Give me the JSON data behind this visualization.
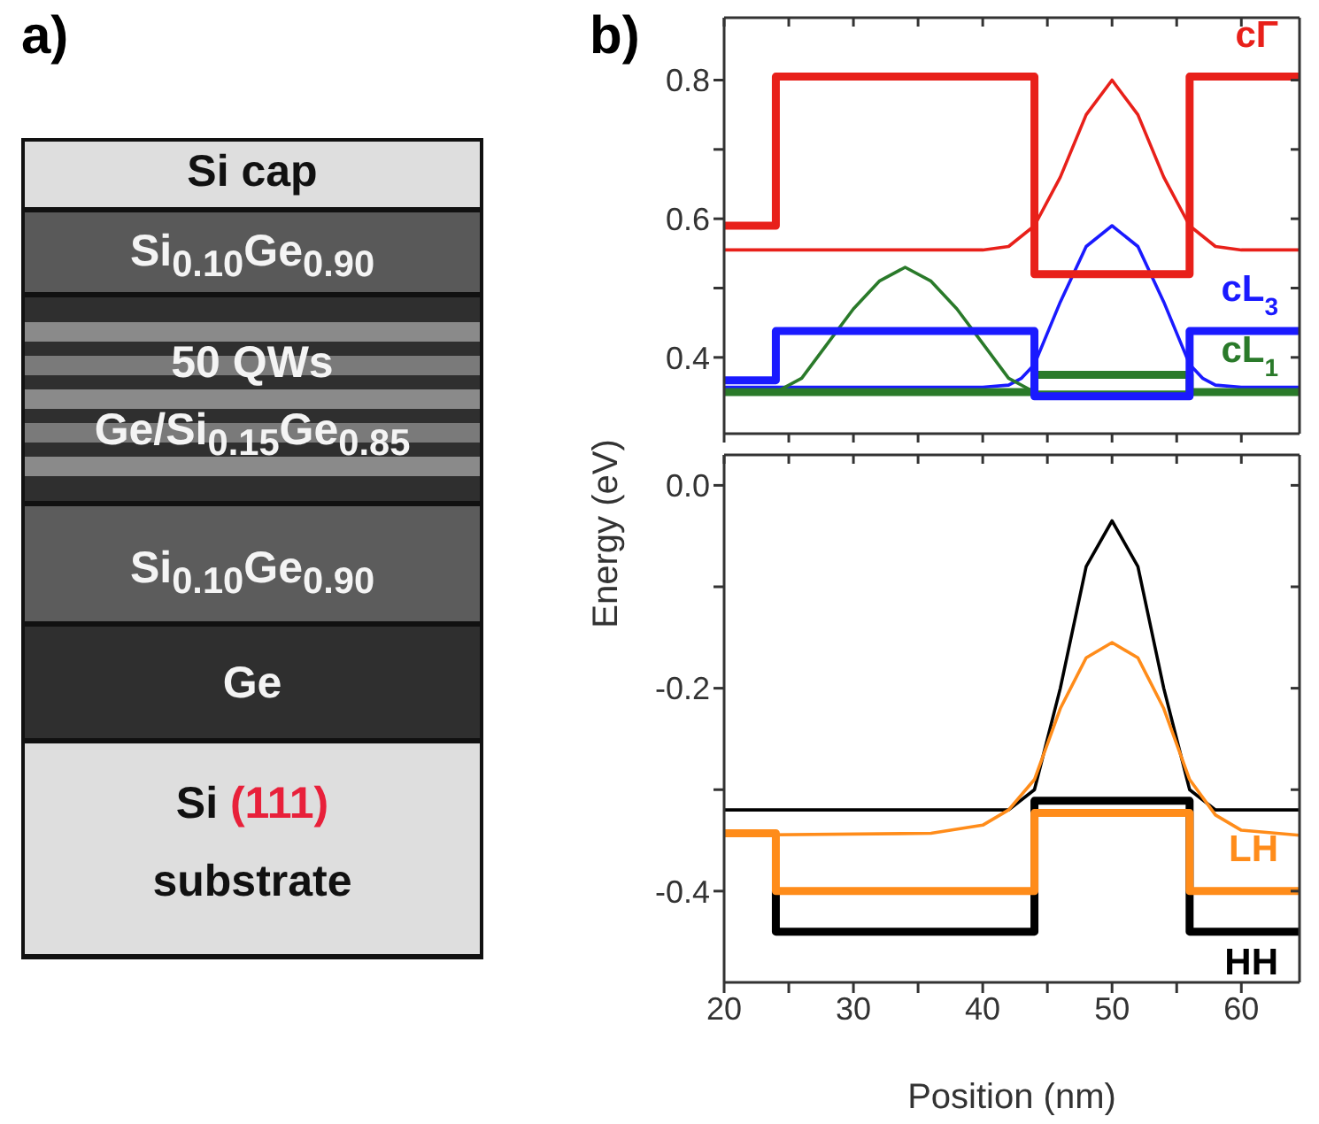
{
  "chart_data": [
    {
      "type": "other",
      "title": "a)",
      "annotations": [
        "Si cap",
        "Si$_{0.10}$Ge$_{0.90}$",
        "50 QWs",
        "Ge/Si$_{0.15}$Ge$_{0.85}$",
        "Si$_{0.10}$Ge$_{0.90}$",
        "Ge",
        "Si (111)",
        "substrate"
      ]
    },
    {
      "type": "line",
      "title": "b)",
      "xlim": [
        20,
        64.5
      ],
      "xticks": [
        20,
        {
          "value": 25,
          "label": null
        },
        30,
        {
          "value": 35,
          "label": null
        },
        40,
        {
          "value": 45,
          "label": null
        },
        50,
        {
          "value": 55,
          "label": null
        },
        60
      ],
      "ylim": [
        0.29,
        0.89
      ],
      "yticks": [
        0.4,
        {
          "value": 0.5,
          "label": null
        },
        0.6,
        {
          "value": 0.7,
          "label": null
        },
        0.8
      ],
      "tick_labels": "y",
      "legend": false,
      "grid": false,
      "marker": "none",
      "series": [
        {
          "color": "#e8201a",
          "x": [
            20,
            40,
            42,
            44,
            46,
            48,
            50,
            52,
            54,
            56,
            58,
            60,
            64.5
          ],
          "values": [
            0.555,
            0.555,
            0.56,
            0.59,
            0.66,
            0.75,
            0.8,
            0.75,
            0.66,
            0.59,
            0.56,
            0.555,
            0.555
          ]
        },
        {
          "color": "#1a1aff",
          "x": [
            20,
            40,
            42,
            43,
            44,
            46,
            48,
            50,
            52,
            54,
            56,
            57,
            58,
            60,
            64.5
          ],
          "values": [
            0.357,
            0.357,
            0.36,
            0.37,
            0.39,
            0.48,
            0.56,
            0.59,
            0.56,
            0.48,
            0.39,
            0.37,
            0.36,
            0.357,
            0.357
          ]
        },
        {
          "color": "#2a7a2a",
          "x": [
            20,
            24,
            26,
            28,
            30,
            32,
            34,
            36,
            38,
            40,
            42,
            44,
            64.5
          ],
          "values": [
            0.35,
            0.35,
            0.37,
            0.42,
            0.47,
            0.51,
            0.53,
            0.51,
            0.47,
            0.42,
            0.37,
            0.35,
            0.35
          ]
        },
        {
          "name": "cL$_{1}$",
          "color": "#2a7a2a",
          "x": [
            20,
            44,
            44,
            56,
            56,
            64.5
          ],
          "values": [
            0.35,
            0.35,
            0.375,
            0.375,
            0.35,
            0.35
          ]
        },
        {
          "name": "cL$_{3}$",
          "color": "#1a1aff",
          "x": [
            20,
            24,
            24,
            44,
            44,
            56,
            56,
            64.5
          ],
          "values": [
            0.367,
            0.367,
            0.438,
            0.438,
            0.344,
            0.344,
            0.438,
            0.438
          ]
        },
        {
          "name": "cΓ",
          "color": "#e8201a",
          "x": [
            20,
            24,
            24,
            44,
            44,
            56,
            56,
            64.5
          ],
          "values": [
            0.59,
            0.59,
            0.805,
            0.805,
            0.52,
            0.52,
            0.805,
            0.805
          ]
        }
      ]
    },
    {
      "type": "line",
      "xlabel": "Position (nm)",
      "ylabel": "Energy (eV)",
      "xlim": [
        20,
        64.5
      ],
      "xticks": [
        20,
        {
          "value": 25,
          "label": null
        },
        30,
        {
          "value": 35,
          "label": null
        },
        40,
        {
          "value": 45,
          "label": null
        },
        50,
        {
          "value": 55,
          "label": null
        },
        60
      ],
      "ylim": [
        -0.49,
        0.03
      ],
      "yticks": [
        {
          "value": 0,
          "label": "0.0"
        },
        {
          "value": -0.1,
          "label": null
        },
        -0.2,
        {
          "value": -0.3,
          "label": null
        },
        -0.4
      ],
      "legend": false,
      "grid": false,
      "marker": "none",
      "series": [
        {
          "color": "#000000",
          "x": [
            20,
            42,
            44,
            46,
            48,
            50,
            52,
            54,
            56,
            58,
            64.5
          ],
          "values": [
            -0.32,
            -0.32,
            -0.3,
            -0.2,
            -0.08,
            -0.035,
            -0.08,
            -0.2,
            -0.3,
            -0.32,
            -0.32
          ]
        },
        {
          "color": "#ff8c1a",
          "x": [
            20,
            36,
            40,
            42,
            44,
            46,
            48,
            50,
            52,
            54,
            56,
            58,
            60,
            64.5
          ],
          "values": [
            -0.345,
            -0.343,
            -0.335,
            -0.32,
            -0.29,
            -0.22,
            -0.17,
            -0.155,
            -0.17,
            -0.22,
            -0.29,
            -0.325,
            -0.34,
            -0.345
          ]
        },
        {
          "name": "HH",
          "color": "#000000",
          "x": [
            24,
            24,
            44,
            44,
            56,
            56,
            64.5
          ],
          "values": [
            -0.4,
            -0.44,
            -0.44,
            -0.311,
            -0.311,
            -0.44,
            -0.44
          ]
        },
        {
          "name": "LH",
          "color": "#ff8c1a",
          "x": [
            20,
            24,
            24,
            44,
            44,
            56,
            56,
            64.5
          ],
          "values": [
            -0.343,
            -0.343,
            -0.4,
            -0.4,
            -0.323,
            -0.323,
            -0.4,
            -0.4
          ]
        }
      ]
    }
  ]
}
